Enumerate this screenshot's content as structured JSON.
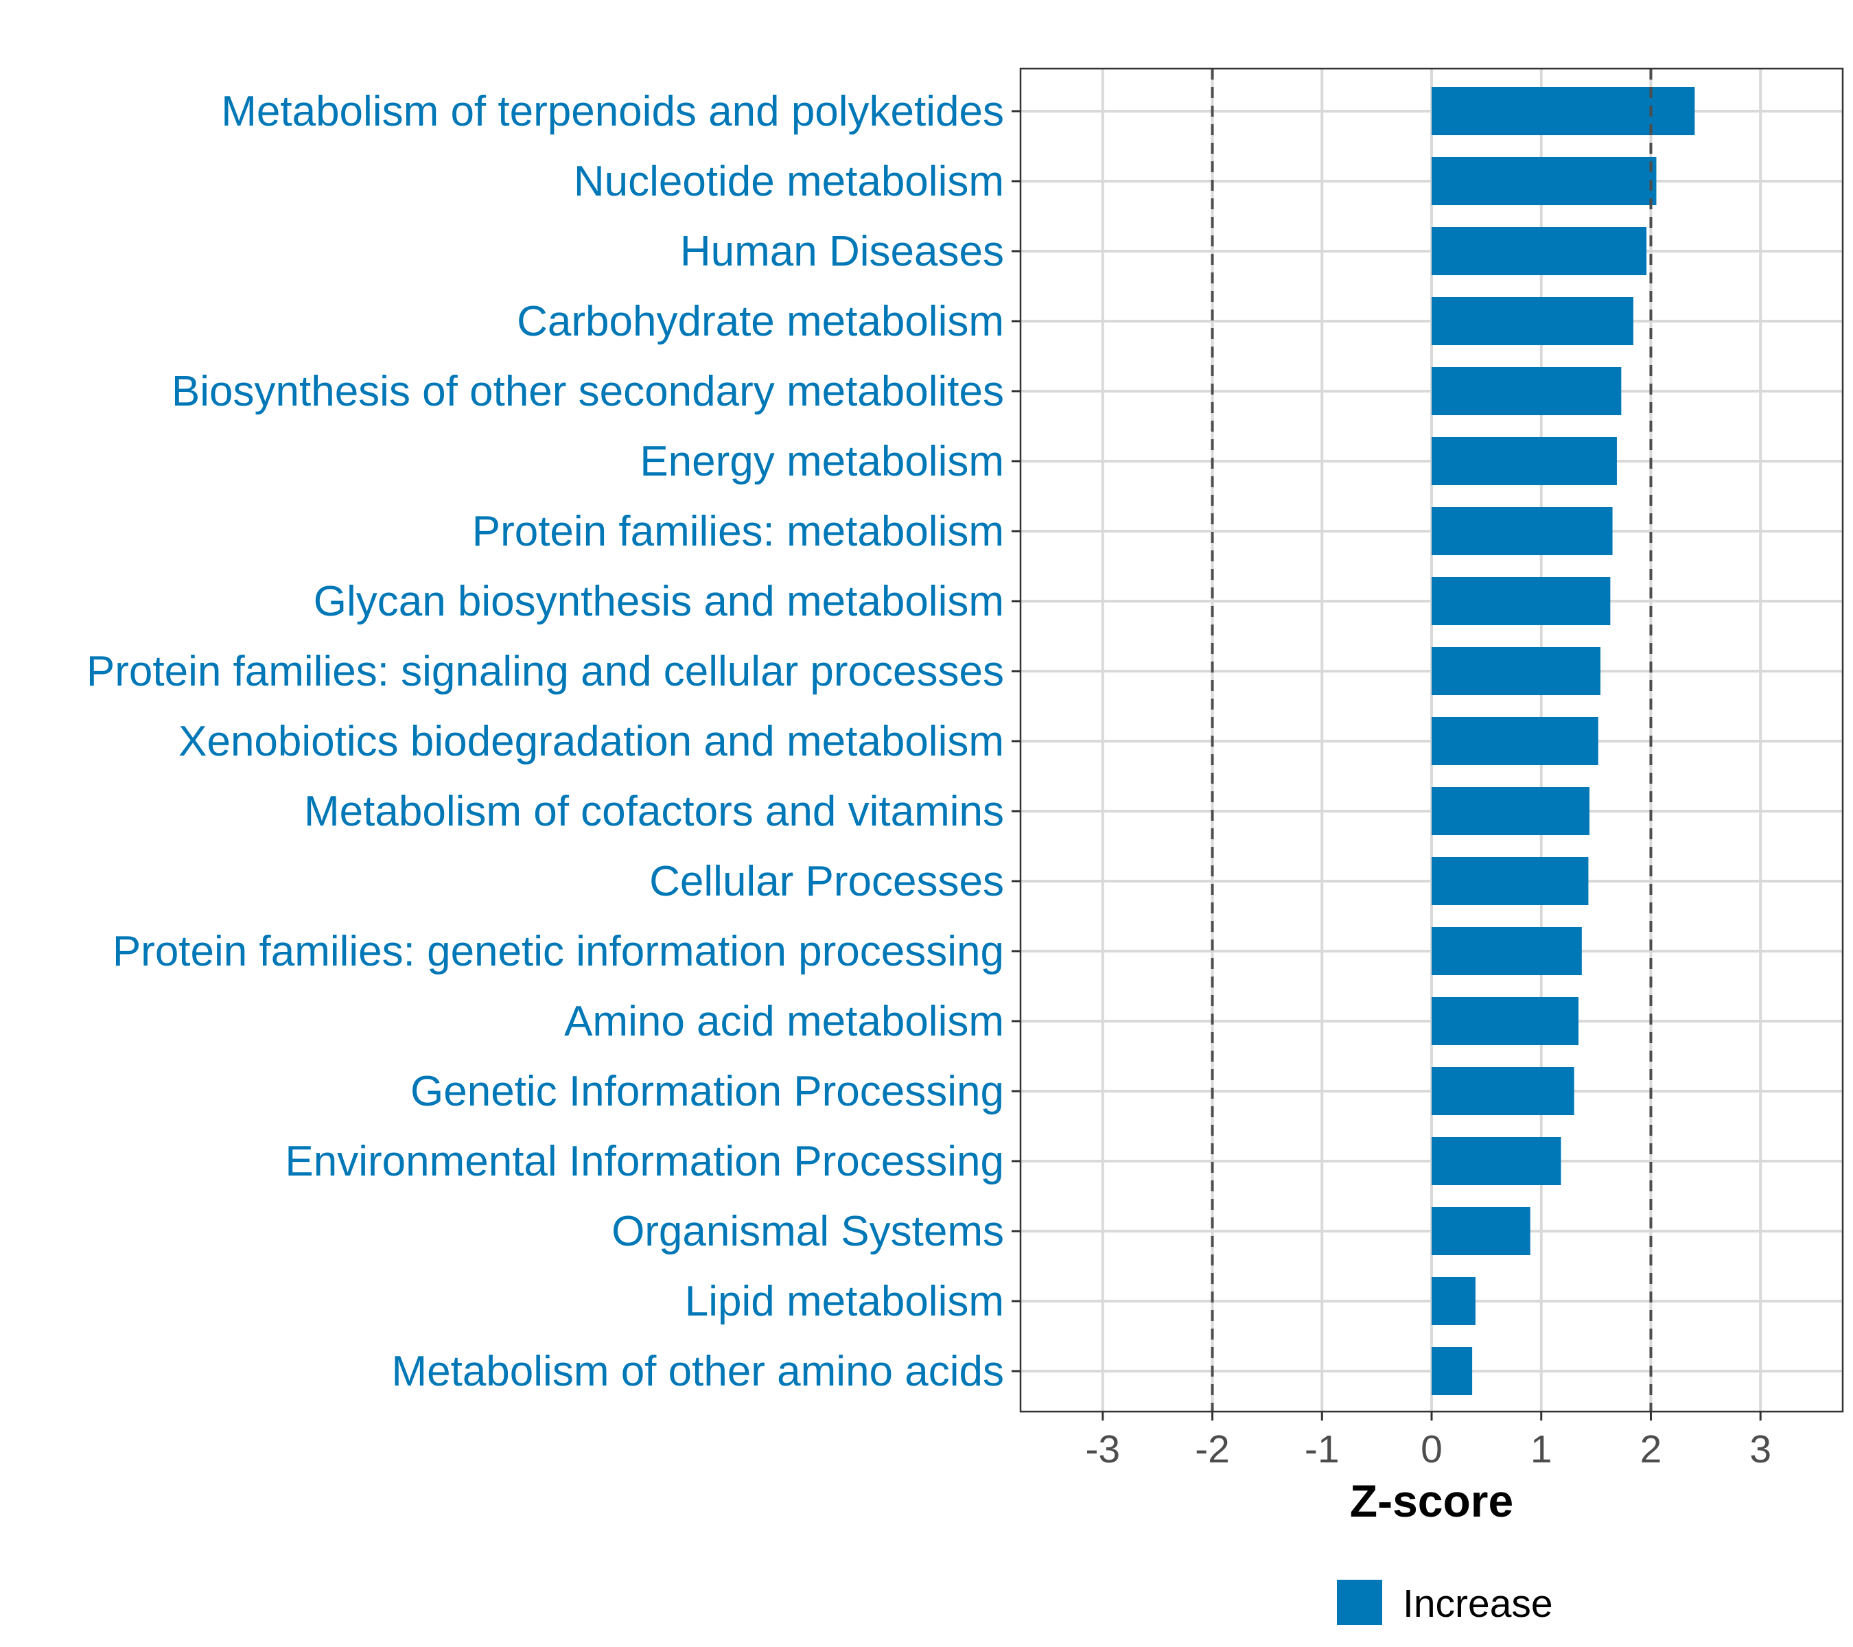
{
  "chart_data": {
    "type": "bar",
    "orientation": "horizontal",
    "categories": [
      "Metabolism of terpenoids and polyketides",
      "Nucleotide metabolism",
      "Human Diseases",
      "Carbohydrate metabolism",
      "Biosynthesis of other secondary metabolites",
      "Energy metabolism",
      "Protein families: metabolism",
      "Glycan biosynthesis and metabolism",
      "Protein families: signaling and cellular processes",
      "Xenobiotics biodegradation and metabolism",
      "Metabolism of cofactors and vitamins",
      "Cellular Processes",
      "Protein families: genetic information processing",
      "Amino acid metabolism",
      "Genetic Information Processing",
      "Environmental Information Processing",
      "Organismal Systems",
      "Lipid metabolism",
      "Metabolism of other amino acids"
    ],
    "series": [
      {
        "name": "Increase",
        "color": "#0077b6",
        "values": [
          2.4,
          2.05,
          1.96,
          1.84,
          1.73,
          1.69,
          1.65,
          1.63,
          1.54,
          1.52,
          1.44,
          1.43,
          1.37,
          1.34,
          1.3,
          1.18,
          0.9,
          0.4,
          0.37
        ]
      }
    ],
    "xlabel": "Z-score",
    "xlim": [
      -3.75,
      3.75
    ],
    "xticks": [
      -3,
      -2,
      -1,
      0,
      1,
      2,
      3
    ],
    "xtick_labels": [
      "-3",
      "-2",
      "-1",
      "0",
      "1",
      "2",
      "3"
    ],
    "threshold_lines": [
      -2,
      2
    ],
    "grid": true,
    "legend": {
      "position": "bottom",
      "entries": [
        "Increase"
      ]
    },
    "label_color": "#0077b6"
  }
}
